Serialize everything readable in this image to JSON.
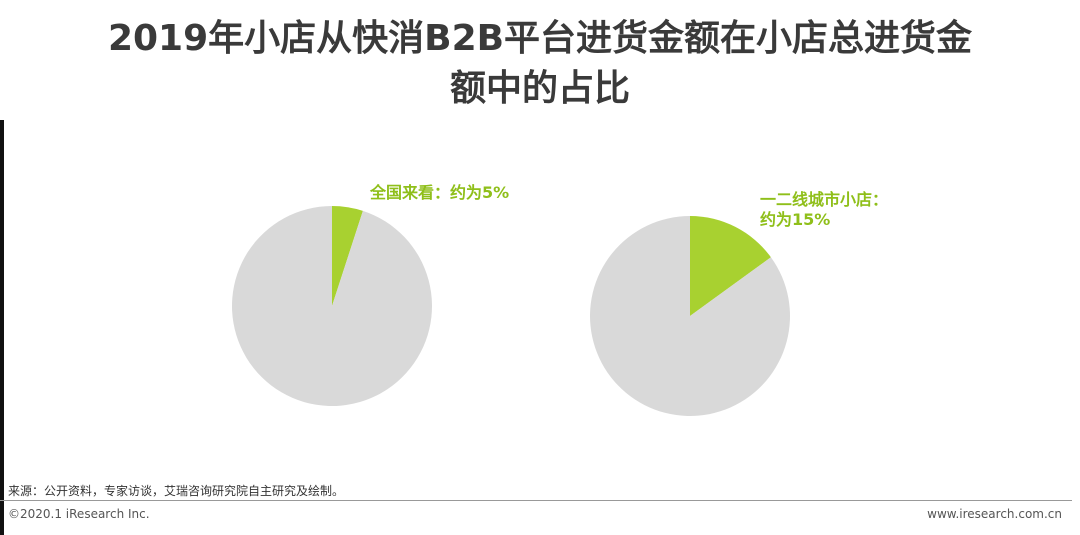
{
  "title": "2019年小店从快消B2B平台进货金额在小店总进货金额中的占比",
  "source": "来源：公开资料，专家访谈，艾瑞咨询研究院自主研究及绘制。",
  "copyright": "©2020.1 iResearch Inc.",
  "website": "www.iresearch.com.cn",
  "chart_data": [
    {
      "type": "pie",
      "categories": [
        null,
        null
      ],
      "values": [
        5,
        95
      ],
      "value_labels": [
        "全国来看：约为5%",
        null
      ],
      "colors": [
        "#a8d130",
        "#d9d9d9"
      ]
    },
    {
      "type": "pie",
      "categories": [
        null,
        null
      ],
      "values": [
        15,
        85
      ],
      "value_labels": [
        "一二线城市小店：约为15%",
        null
      ],
      "colors": [
        "#a8d130",
        "#d9d9d9"
      ]
    }
  ]
}
